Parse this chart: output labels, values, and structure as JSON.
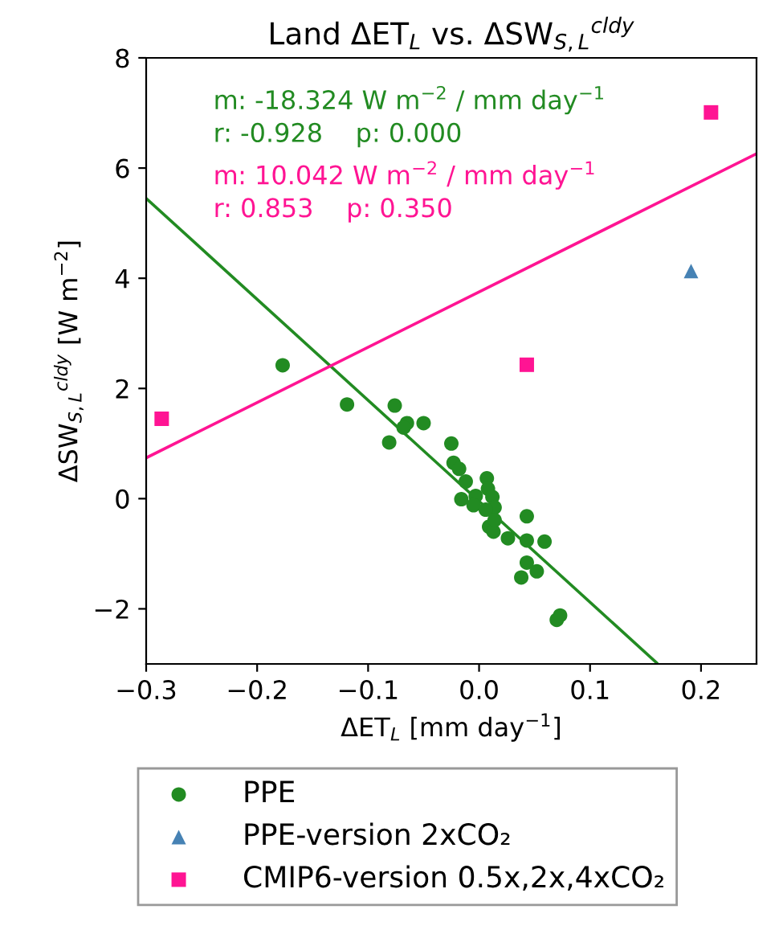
{
  "chart_data": {
    "type": "scatter",
    "title": "Land ΔET$_{L}$ vs. ΔSW$_{S,L}$$^{cldy}$",
    "xlabel": "ΔET$_{L}$ [mm day$^{−1}$]",
    "ylabel": "ΔSW$_{S,L}$$^{cldy}$ [W m$^{−2}$]",
    "xlim": [
      -0.3,
      0.25
    ],
    "ylim": [
      -3,
      8
    ],
    "xticks": [
      {
        "value": -0.3,
        "label": "−0.3"
      },
      {
        "value": -0.2,
        "label": "−0.2"
      },
      {
        "value": -0.1,
        "label": "−0.1"
      },
      {
        "value": 0,
        "label": "0.0"
      },
      {
        "value": 0.1,
        "label": "0.1"
      },
      {
        "value": 0.2,
        "label": "0.2"
      }
    ],
    "yticks": [
      {
        "value": -2,
        "label": "−2"
      },
      0,
      2,
      4,
      6,
      8
    ],
    "grid": false,
    "legend": "bottom",
    "annotations": [
      "m: -18.324 W m$^{−2}$ / mm day$^{−1}$",
      "r: -0.928    p: 0.000",
      "m: 10.042 W m$^{−2}$ / mm day$^{−1}$",
      "r: 0.853    p: 0.350"
    ],
    "series": [
      {
        "name": "PPE",
        "color": "#228b22",
        "marker": "circle",
        "x": [
          -0.177,
          -0.119,
          -0.076,
          -0.081,
          -0.065,
          -0.068,
          -0.05,
          -0.025,
          -0.023,
          -0.018,
          -0.012,
          -0.016,
          -0.003,
          -0.005,
          0.007,
          0.008,
          0.012,
          0.014,
          0.006,
          0.009,
          0.013,
          0.014,
          0.026,
          0.043,
          0.043,
          0.059,
          0.043,
          0.052,
          0.038,
          0.07,
          0.073
        ],
        "values": [
          2.42,
          1.71,
          1.69,
          1.02,
          1.37,
          1.29,
          1.37,
          1.0,
          0.65,
          0.54,
          0.31,
          -0.01,
          0.05,
          -0.12,
          0.37,
          0.18,
          0.03,
          -0.16,
          -0.2,
          -0.51,
          -0.6,
          -0.39,
          -0.72,
          -0.32,
          -0.76,
          -0.78,
          -1.16,
          -1.32,
          -1.43,
          -2.2,
          -2.12
        ]
      },
      {
        "name": "PPE-version 2xCO₂",
        "color": "#4682b4",
        "marker": "triangle",
        "x": [
          0.191
        ],
        "values": [
          4.13
        ]
      },
      {
        "name": "CMIP6-version 0.5x,2x,4xCO₂",
        "color": "#ff1493",
        "marker": "square",
        "x": [
          -0.286,
          0.043,
          0.209
        ],
        "values": [
          1.45,
          2.43,
          7.01
        ]
      },
      {
        "type": "line",
        "color": "#228b22",
        "x": [
          -0.3,
          0.16
        ],
        "values": [
          5.45,
          -2.98
        ]
      },
      {
        "type": "line",
        "color": "#ff1493",
        "x": [
          -0.3,
          0.25
        ],
        "values": [
          0.74,
          6.26
        ]
      }
    ]
  }
}
